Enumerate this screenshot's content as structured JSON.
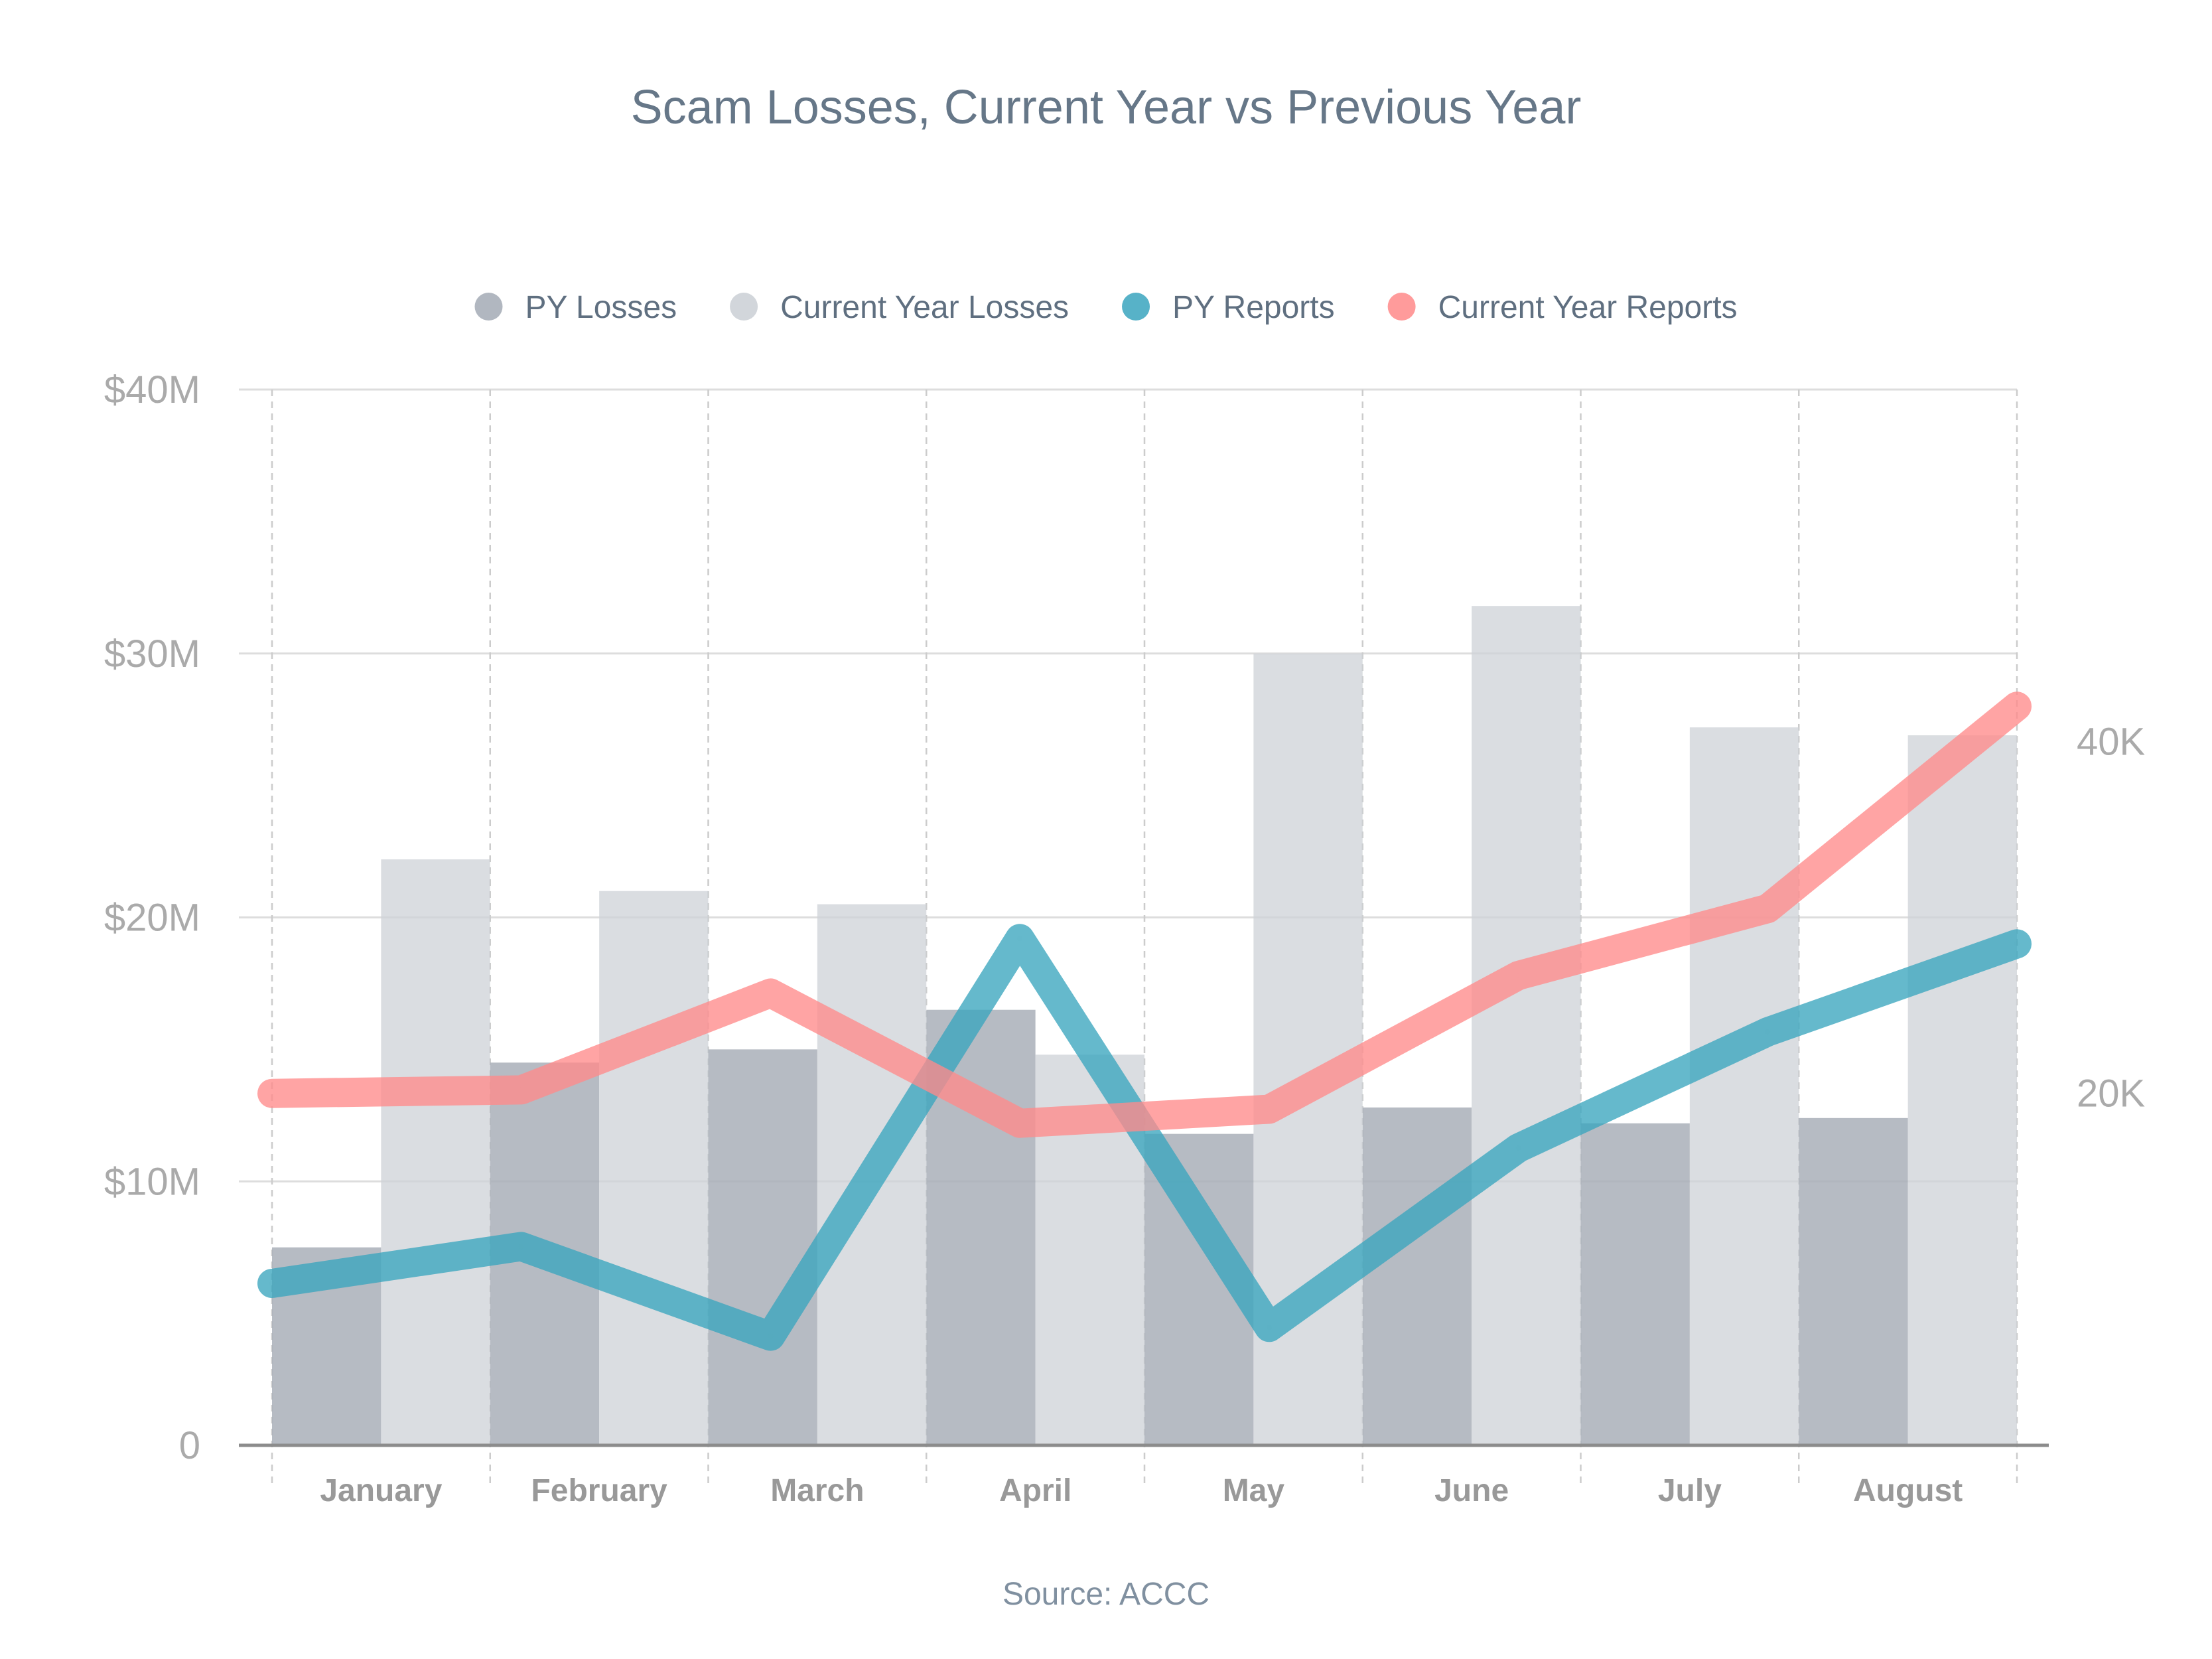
{
  "chart_data": {
    "type": "bar",
    "title": "Scam Losses, Current Year vs Previous Year",
    "source": "Source: ACCC",
    "categories": [
      "January",
      "February",
      "March",
      "April",
      "May",
      "June",
      "July",
      "August"
    ],
    "series": [
      {
        "name": "PY Losses",
        "type": "bar",
        "axis": "left",
        "color": "#a9afb9",
        "values": [
          7.5,
          14.5,
          15.0,
          16.5,
          11.8,
          12.8,
          12.2,
          12.4
        ]
      },
      {
        "name": "Current Year Losses",
        "type": "bar",
        "axis": "left",
        "color": "#cdd1d7",
        "values": [
          22.2,
          21.0,
          20.5,
          14.8,
          30.0,
          31.8,
          27.2,
          26.9
        ]
      },
      {
        "name": "PY Reports",
        "type": "line",
        "axis": "right",
        "color": "#3aa5be",
        "values": [
          9200,
          11300,
          6200,
          28800,
          6700,
          16900,
          23500,
          28500
        ]
      },
      {
        "name": "Current Year Reports",
        "type": "line",
        "axis": "right",
        "color": "#ff8a8a",
        "values": [
          20000,
          20200,
          25700,
          18300,
          19100,
          26700,
          30500,
          42000
        ]
      }
    ],
    "y_left": {
      "min": 0,
      "max": 40,
      "ticks": [
        0,
        10,
        20,
        30,
        40
      ],
      "tick_labels": [
        "0",
        "$10M",
        "$20M",
        "$30M",
        "$40M"
      ]
    },
    "y_right": {
      "min": 0,
      "max": 60000,
      "ticks": [
        20000,
        40000
      ],
      "tick_labels": [
        "20K",
        "40K"
      ]
    },
    "legend_position": "top-center",
    "grid": true
  }
}
